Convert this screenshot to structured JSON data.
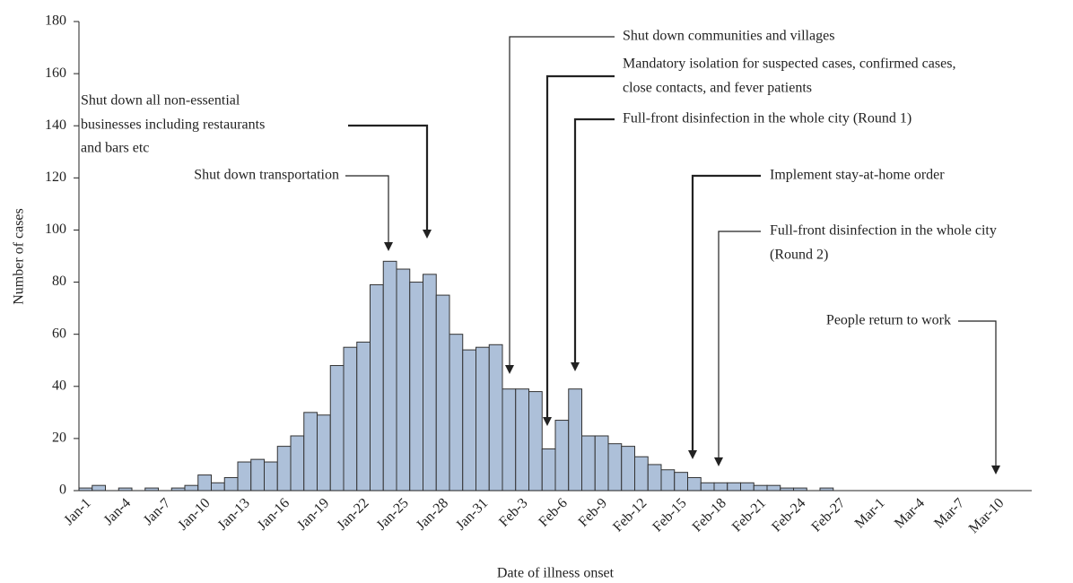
{
  "chart_data": {
    "type": "bar",
    "x_label": "Date of illness onset",
    "y_label": "Number of cases",
    "categories": [
      "Jan-1",
      null,
      null,
      "Jan-4",
      null,
      null,
      "Jan-7",
      null,
      null,
      "Jan-10",
      null,
      null,
      "Jan-13",
      null,
      null,
      "Jan-16",
      null,
      null,
      "Jan-19",
      null,
      null,
      "Jan-22",
      null,
      null,
      "Jan-25",
      null,
      null,
      "Jan-28",
      null,
      null,
      "Jan-31",
      null,
      null,
      "Feb-3",
      null,
      null,
      "Feb-6",
      null,
      null,
      "Feb-9",
      null,
      null,
      "Feb-12",
      null,
      null,
      "Feb-15",
      null,
      null,
      "Feb-18",
      null,
      null,
      "Feb-21",
      null,
      null,
      "Feb-24",
      null,
      null,
      "Feb-27",
      null,
      null,
      "Mar-1",
      null,
      null,
      "Mar-4",
      null,
      null,
      "Mar-7",
      null,
      null,
      "Mar-10",
      null,
      null
    ],
    "values": [
      1,
      2,
      0,
      1,
      0,
      1,
      0,
      1,
      2,
      6,
      3,
      5,
      11,
      12,
      11,
      17,
      21,
      30,
      29,
      48,
      55,
      57,
      79,
      88,
      85,
      80,
      83,
      75,
      60,
      54,
      55,
      56,
      39,
      39,
      38,
      16,
      27,
      39,
      21,
      21,
      18,
      17,
      13,
      10,
      8,
      7,
      5,
      3,
      3,
      3,
      3,
      2,
      2,
      1,
      1,
      0,
      1,
      0,
      0,
      0,
      0,
      0,
      0,
      0,
      0,
      0,
      0,
      0,
      0,
      0,
      0,
      0
    ],
    "color": "#adc0d9",
    "ylim": [
      0,
      180
    ],
    "yticks": [
      0,
      20,
      40,
      60,
      80,
      100,
      120,
      140,
      160,
      180
    ],
    "annotations": [
      {
        "lines": [
          "Shut down all non-essential",
          "businesses including restaurants",
          "and bars etc"
        ]
      },
      {
        "lines": [
          "Shut down transportation"
        ]
      },
      {
        "lines": [
          "Shut down communities and villages"
        ]
      },
      {
        "lines": [
          "Mandatory isolation for suspected cases, confirmed cases,",
          "close contacts, and fever patients"
        ]
      },
      {
        "lines": [
          "Full-front disinfection in the whole city (Round 1)"
        ]
      },
      {
        "lines": [
          "Implement stay-at-home order"
        ]
      },
      {
        "lines": [
          "Full-front disinfection in the whole city",
          "(Round 2)"
        ]
      },
      {
        "lines": [
          "People return to work"
        ]
      }
    ]
  }
}
